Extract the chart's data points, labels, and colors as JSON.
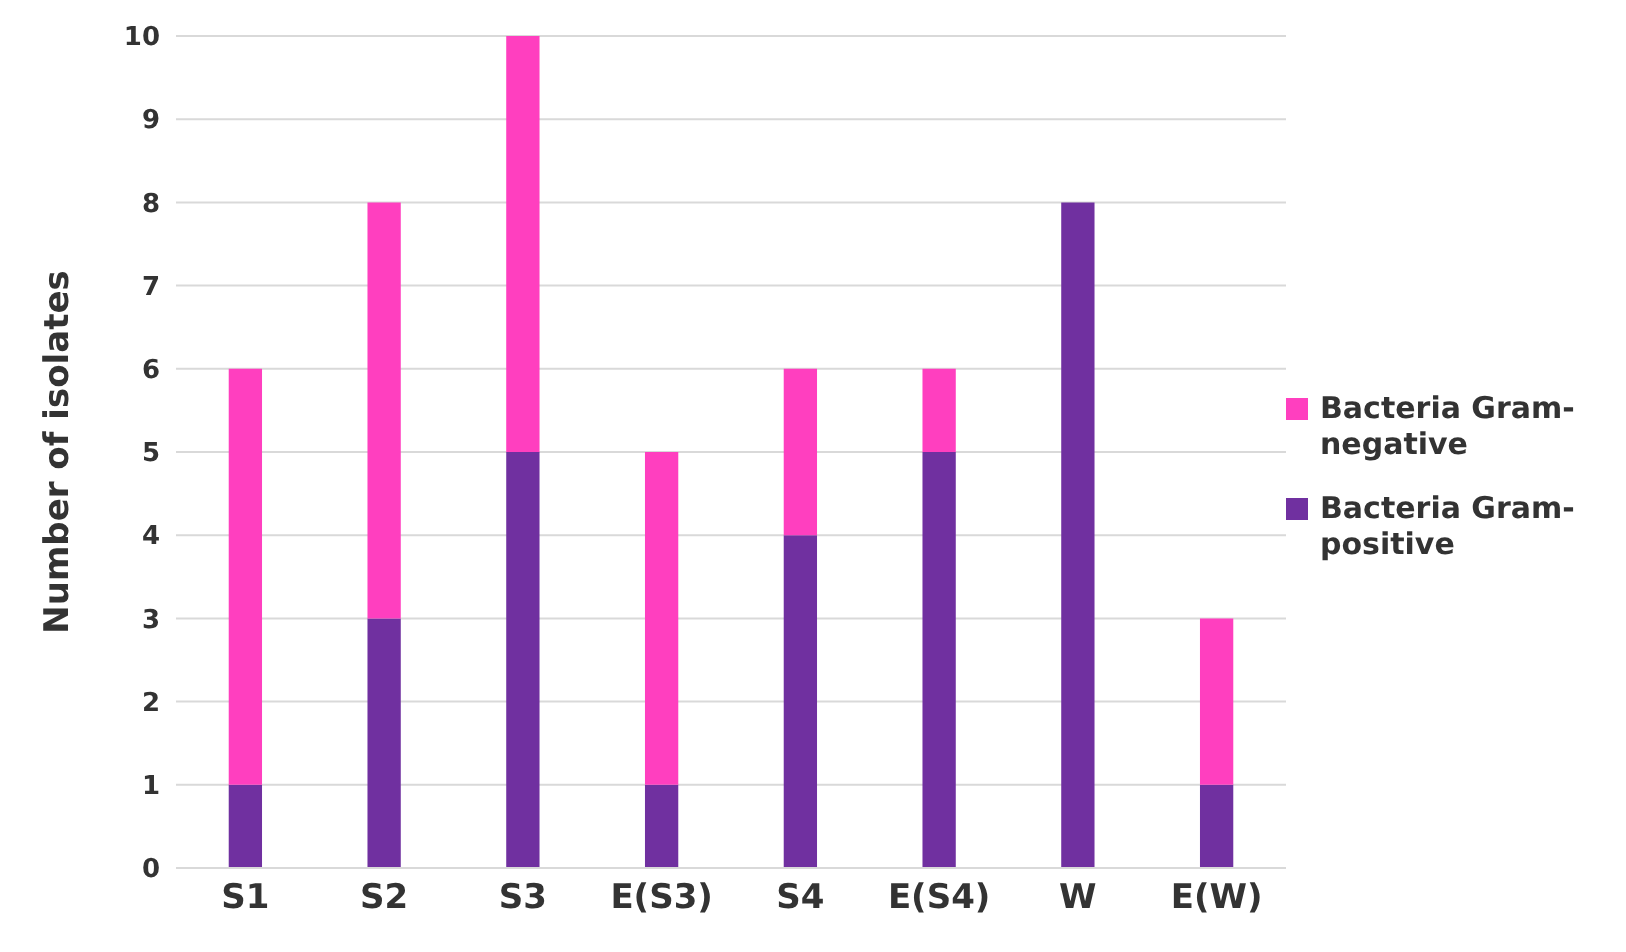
{
  "chart_data": {
    "type": "bar",
    "stacked": true,
    "ylabel": "Number of isolates",
    "categories": [
      "S1",
      "S2",
      "S3",
      "E(S3)",
      "S4",
      "E(S4)",
      "W",
      "E(W)"
    ],
    "series": [
      {
        "name": "Bacteria Gram-positive",
        "color": "#7030a0",
        "values": [
          1,
          3,
          5,
          1,
          4,
          5,
          8,
          1
        ]
      },
      {
        "name": "Bacteria Gram-negative",
        "color": "#ff3fbf",
        "values": [
          5,
          5,
          5,
          4,
          2,
          1,
          0,
          2
        ]
      }
    ],
    "ylim": [
      0,
      10
    ],
    "yticks": [
      0,
      1,
      2,
      3,
      4,
      5,
      6,
      7,
      8,
      9,
      10
    ],
    "grid": "y",
    "legend": "right"
  }
}
